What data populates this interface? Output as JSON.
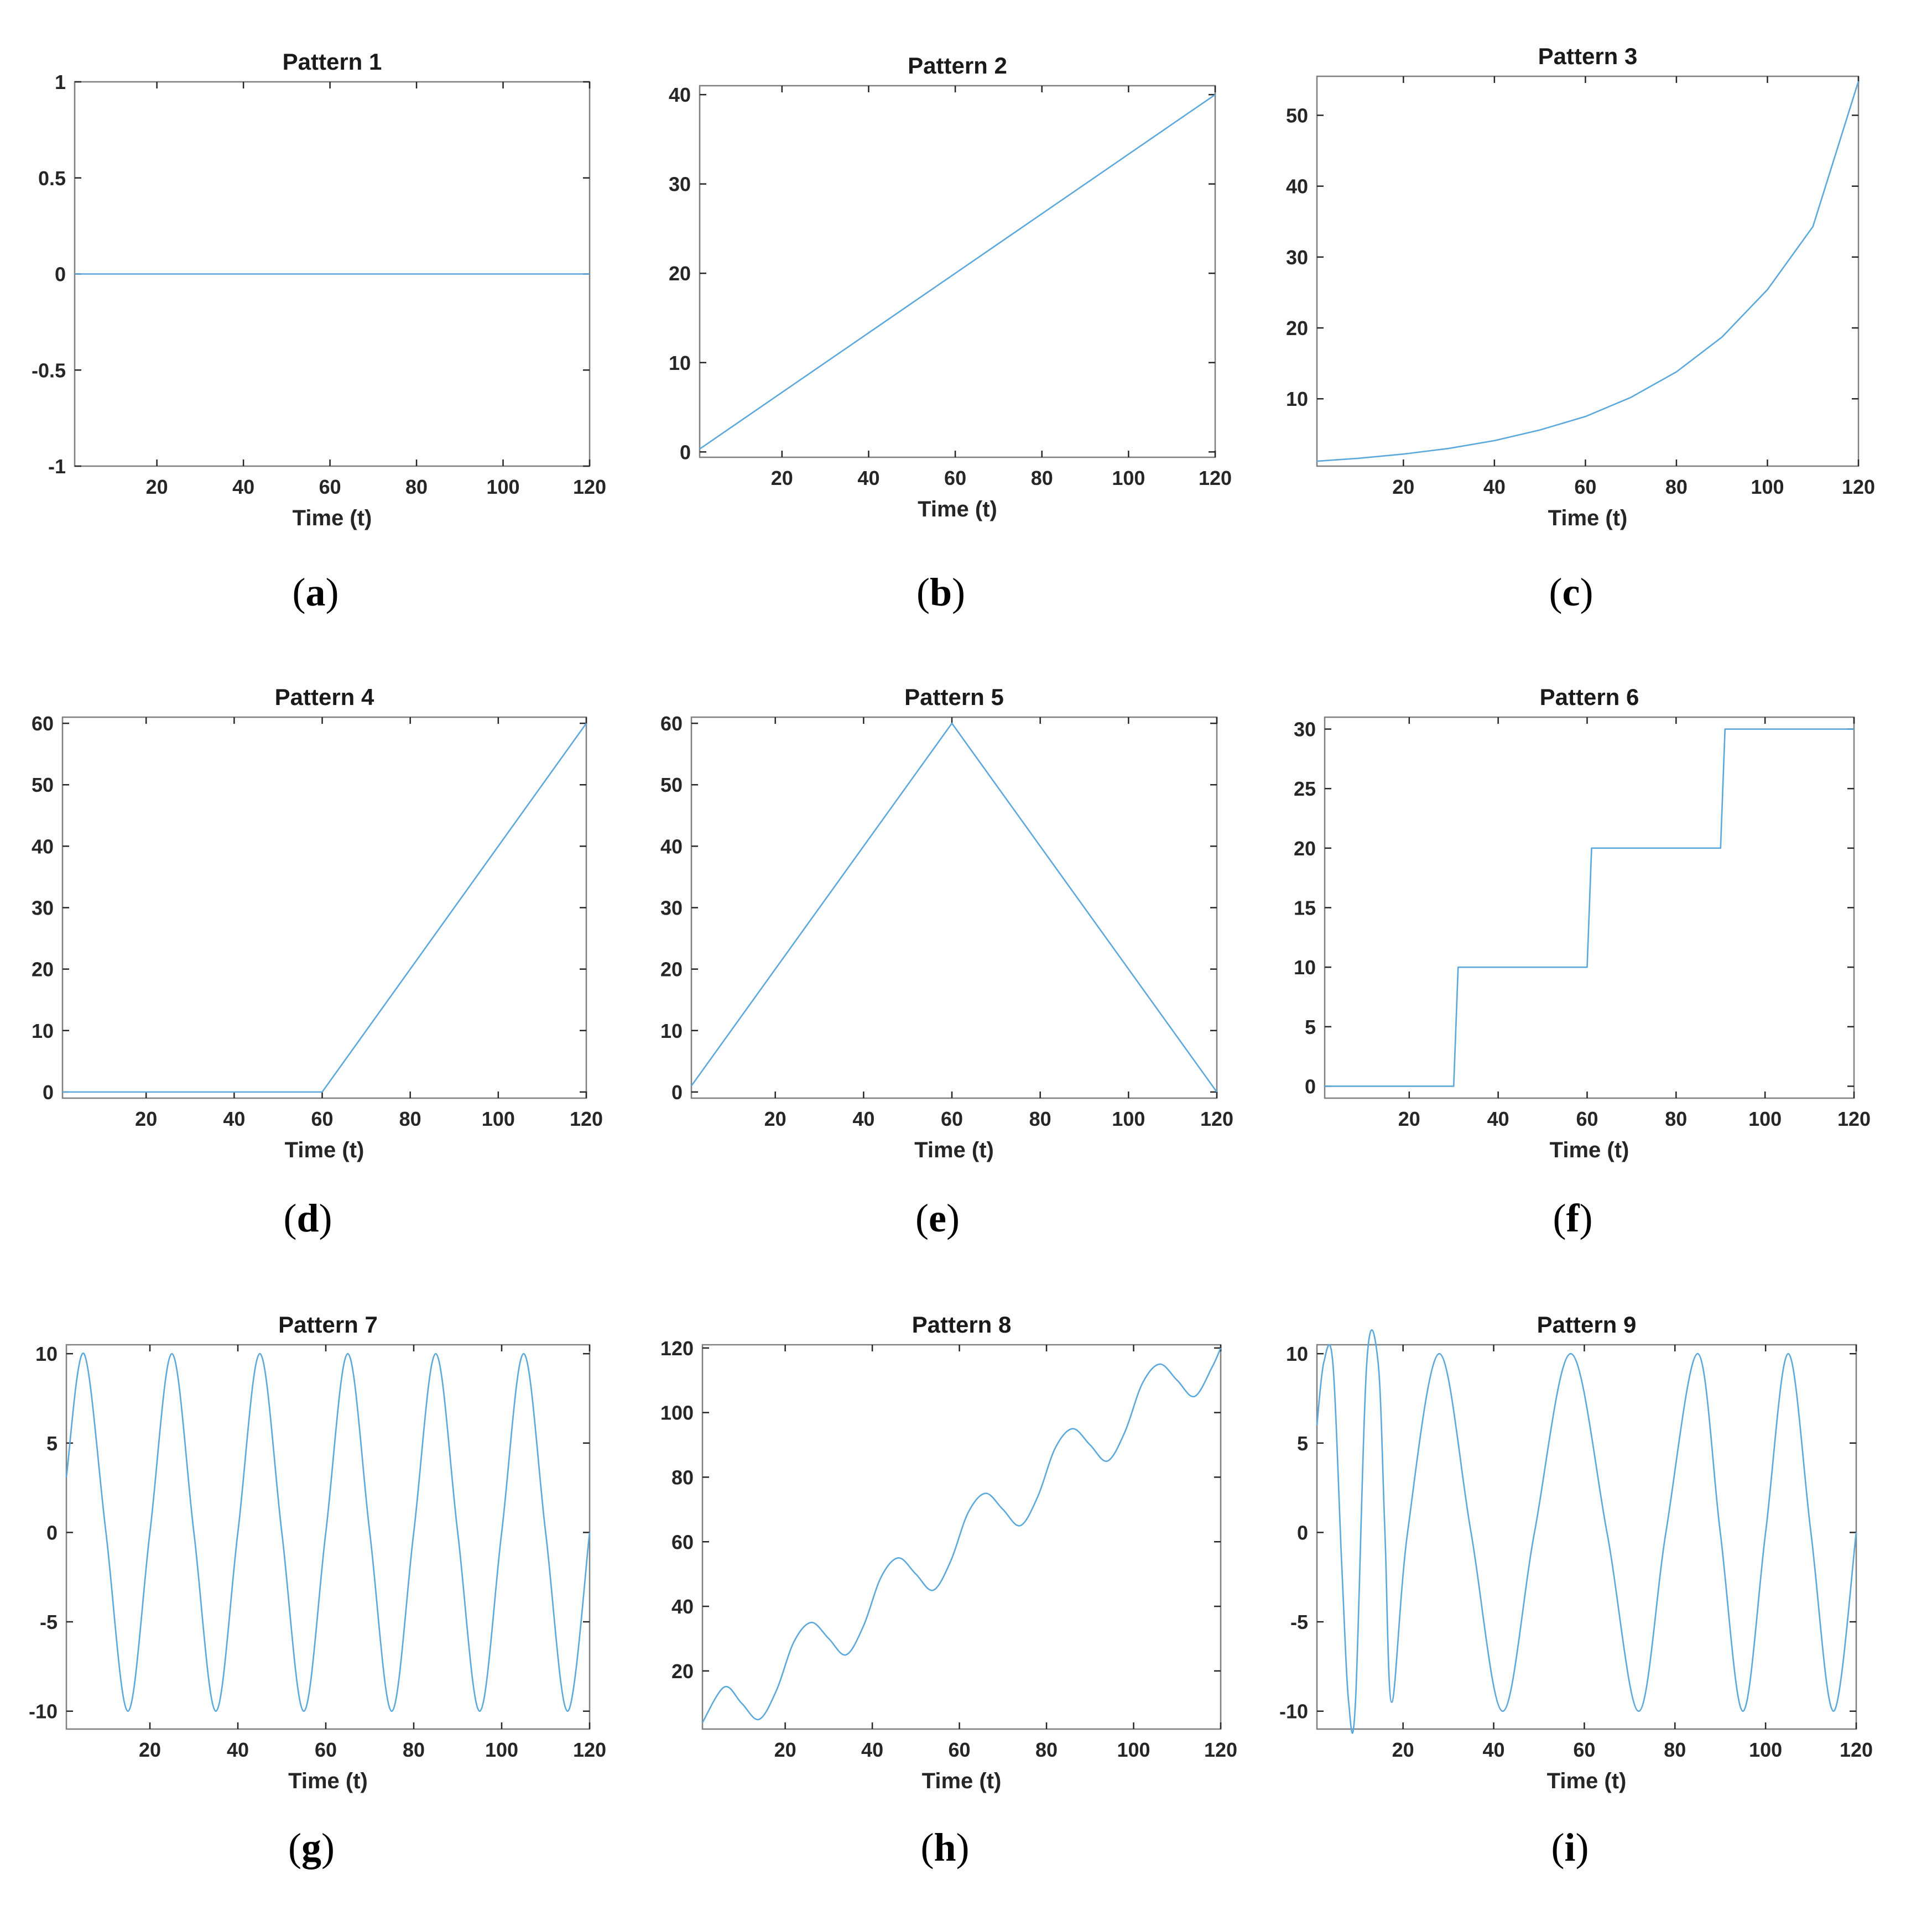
{
  "line_color": "#5ba8dd",
  "chart_data": [
    {
      "type": "line",
      "title": "Pattern 1",
      "caption": "a",
      "xlabel": "Time (t)",
      "ylabel": "",
      "xlim": [
        1,
        120
      ],
      "ylim": [
        -1,
        1
      ],
      "xticks": [
        20,
        40,
        60,
        80,
        100,
        120
      ],
      "yticks": [
        -1,
        -0.5,
        0,
        0.5,
        1
      ],
      "series": [
        {
          "x": [
            1,
            120
          ],
          "y": [
            0,
            0
          ]
        }
      ]
    },
    {
      "type": "line",
      "title": "Pattern 2",
      "caption": "b",
      "xlabel": "Time (t)",
      "ylabel": "",
      "xlim": [
        1,
        120
      ],
      "ylim": [
        -0.6,
        41
      ],
      "xticks": [
        20,
        40,
        60,
        80,
        100,
        120
      ],
      "yticks": [
        0,
        10,
        20,
        30,
        40
      ],
      "series": [
        {
          "x": [
            1,
            120
          ],
          "y": [
            0.33,
            40
          ]
        }
      ]
    },
    {
      "type": "line",
      "title": "Pattern 3",
      "caption": "c",
      "xlabel": "Time (t)",
      "ylabel": "",
      "xlim": [
        1,
        120
      ],
      "ylim": [
        0.5,
        55.5
      ],
      "xticks": [
        20,
        40,
        60,
        80,
        100,
        120
      ],
      "yticks": [
        10,
        20,
        30,
        40,
        50
      ],
      "series": [
        {
          "x": [
            1,
            10,
            20,
            30,
            40,
            50,
            60,
            70,
            80,
            90,
            100,
            110,
            120
          ],
          "y": [
            1.2,
            1.6,
            2.2,
            3.0,
            4.1,
            5.6,
            7.5,
            10.2,
            13.8,
            18.7,
            25.4,
            34.3,
            54.8
          ]
        }
      ]
    },
    {
      "type": "line",
      "title": "Pattern 4",
      "caption": "d",
      "xlabel": "Time (t)",
      "ylabel": "",
      "xlim": [
        1,
        120
      ],
      "ylim": [
        -1,
        61
      ],
      "xticks": [
        20,
        40,
        60,
        80,
        100,
        120
      ],
      "yticks": [
        0,
        10,
        20,
        30,
        40,
        50,
        60
      ],
      "series": [
        {
          "x": [
            1,
            60,
            120
          ],
          "y": [
            0,
            0,
            60
          ]
        }
      ]
    },
    {
      "type": "line",
      "title": "Pattern 5",
      "caption": "e",
      "xlabel": "Time (t)",
      "ylabel": "",
      "xlim": [
        1,
        120
      ],
      "ylim": [
        -1,
        61
      ],
      "xticks": [
        20,
        40,
        60,
        80,
        100,
        120
      ],
      "yticks": [
        0,
        10,
        20,
        30,
        40,
        50,
        60
      ],
      "series": [
        {
          "x": [
            1,
            60,
            120
          ],
          "y": [
            1,
            60,
            0
          ]
        }
      ]
    },
    {
      "type": "line",
      "title": "Pattern 6",
      "caption": "f",
      "xlabel": "Time (t)",
      "ylabel": "",
      "xlim": [
        1,
        120
      ],
      "ylim": [
        -1,
        31
      ],
      "xticks": [
        20,
        40,
        60,
        80,
        100,
        120
      ],
      "yticks": [
        0,
        5,
        10,
        15,
        20,
        25,
        30
      ],
      "series": [
        {
          "x": [
            1,
            30,
            31,
            60,
            61,
            90,
            91,
            120
          ],
          "y": [
            0,
            0,
            10,
            10,
            20,
            20,
            30,
            30
          ]
        }
      ]
    },
    {
      "type": "line",
      "title": "Pattern 7",
      "caption": "g",
      "xlabel": "Time (t)",
      "ylabel": "",
      "xlim": [
        1,
        120
      ],
      "ylim": [
        -11,
        10.5
      ],
      "xticks": [
        20,
        40,
        60,
        80,
        100,
        120
      ],
      "yticks": [
        -10,
        -5,
        0,
        5,
        10
      ],
      "series": [
        {
          "x": [
            1,
            5,
            10,
            15,
            20,
            25,
            30,
            35,
            40,
            45,
            50,
            55,
            60,
            65,
            70,
            75,
            80,
            85,
            90,
            95,
            100,
            105,
            110,
            115,
            120
          ],
          "y": [
            3.1,
            10,
            0,
            -10,
            0,
            10,
            0,
            -10,
            0,
            10,
            0,
            -10,
            0,
            10,
            0,
            -10,
            0,
            10,
            0,
            -10,
            0,
            10,
            0,
            -10,
            0
          ]
        }
      ]
    },
    {
      "type": "line",
      "title": "Pattern 8",
      "caption": "h",
      "xlabel": "Time (t)",
      "ylabel": "",
      "xlim": [
        1,
        120
      ],
      "ylim": [
        2,
        121
      ],
      "xticks": [
        20,
        40,
        60,
        80,
        100,
        120
      ],
      "yticks": [
        20,
        40,
        60,
        80,
        100,
        120
      ],
      "series": [
        {
          "x": [
            1,
            6,
            10,
            14,
            18,
            22,
            26,
            30,
            34,
            38,
            42,
            46,
            50,
            54,
            58,
            62,
            66,
            70,
            74,
            78,
            82,
            86,
            90,
            94,
            98,
            102,
            106,
            110,
            114,
            118,
            120
          ],
          "y": [
            4,
            15,
            10,
            5,
            14,
            29,
            35,
            30,
            25,
            34,
            49,
            55,
            50,
            45,
            54,
            69,
            75,
            70,
            65,
            74,
            89,
            95,
            90,
            85,
            94,
            109,
            115,
            110,
            105,
            114,
            120
          ]
        }
      ]
    },
    {
      "type": "line",
      "title": "Pattern 9",
      "caption": "i",
      "xlabel": "Time (t)",
      "ylabel": "",
      "xlim": [
        1,
        120
      ],
      "ylim": [
        -11,
        10.5
      ],
      "xticks": [
        20,
        40,
        60,
        80,
        100,
        120
      ],
      "yticks": [
        -10,
        -5,
        0,
        5,
        10
      ],
      "series": [
        {
          "x": [
            1,
            2.5,
            4.5,
            6.5,
            8,
            9.5,
            12,
            14.5,
            16,
            17.5,
            21,
            28,
            35,
            42,
            49,
            57,
            65,
            72,
            78,
            85,
            90,
            95,
            100,
            105,
            110,
            115,
            120
          ],
          "y": [
            6,
            9.5,
            9.5,
            -2,
            -9.5,
            -9.5,
            9.5,
            9.5,
            0,
            -9.5,
            0,
            10,
            0,
            -10,
            0,
            10,
            0,
            -10,
            0,
            10,
            0,
            -10,
            0,
            10,
            0,
            -10,
            0
          ]
        }
      ]
    }
  ]
}
